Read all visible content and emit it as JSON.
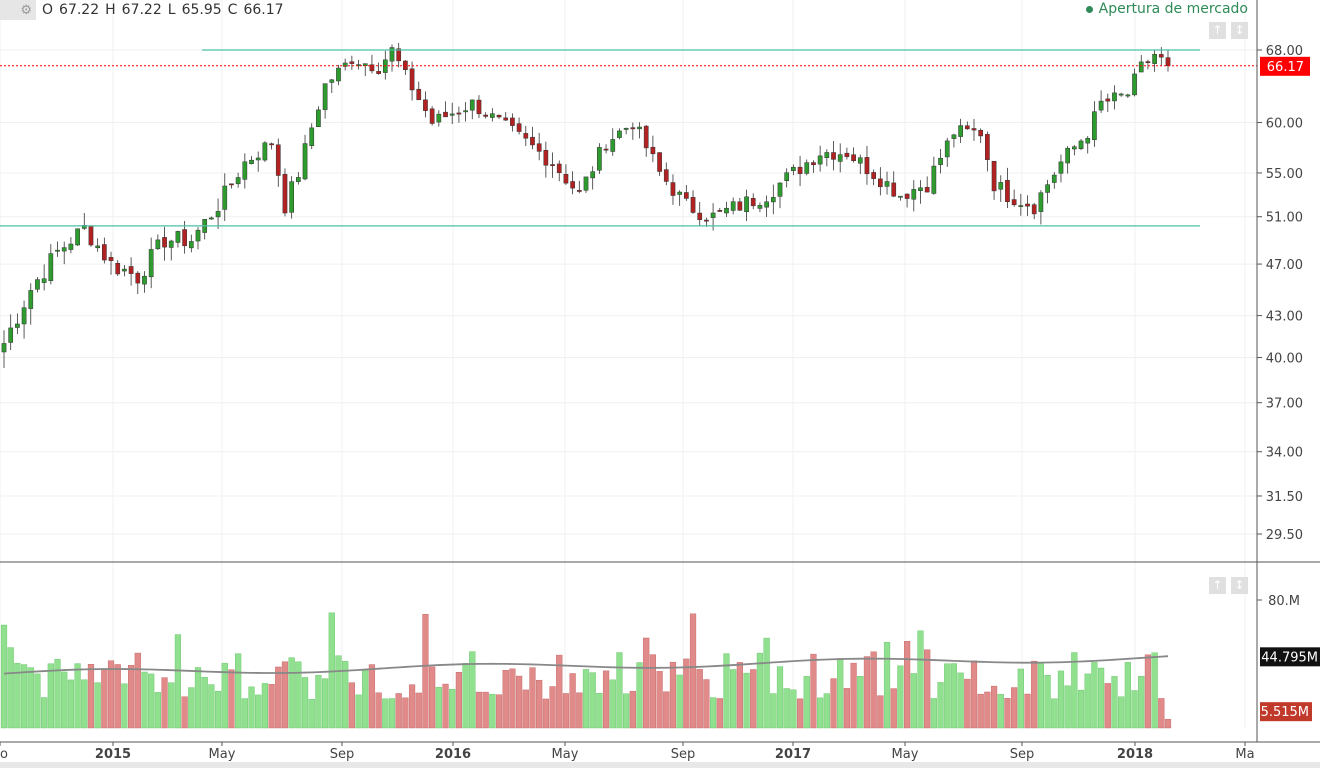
{
  "ohlc": {
    "o_label": "O",
    "o": "67.22",
    "h_label": "H",
    "h": "67.22",
    "l_label": "L",
    "l": "65.95",
    "c_label": "C",
    "c": "66.17"
  },
  "market_status": "Apertura de mercado",
  "colors": {
    "up": "#2e9b2e",
    "down": "#b22222",
    "vol_up": "#90e090",
    "vol_down": "#e08a8a",
    "support": "#4cbfa8",
    "last_price": "#ff0000",
    "ma": "#888888"
  },
  "price_axis": {
    "ticks": [
      "68.00",
      "60.00",
      "55.00",
      "51.00",
      "47.00",
      "43.00",
      "40.00",
      "37.00",
      "34.00",
      "31.50",
      "29.50"
    ],
    "last_price_label": "66.17"
  },
  "volume_axis": {
    "ticks": [
      "80.M"
    ],
    "ma_label": "44.795M",
    "last_volume_label": "5.515M"
  },
  "time_axis": [
    "o",
    "2015",
    "May",
    "Sep",
    "2016",
    "May",
    "Sep",
    "2017",
    "May",
    "Sep",
    "2018",
    "Ma"
  ],
  "chart_data": {
    "type": "candlestick",
    "log_scale": true,
    "price_range": [
      28,
      70
    ],
    "support_level": 50.2,
    "resistance_level": 68.0,
    "last_price": 66.17,
    "volume_range": [
      0,
      100
    ],
    "volume_unit": "M",
    "volume_moving_average": 44.795,
    "last_volume": 5.515,
    "waypoints": [
      [
        0,
        41
      ],
      [
        4,
        45
      ],
      [
        8,
        48
      ],
      [
        12,
        50
      ],
      [
        16,
        47
      ],
      [
        20,
        46
      ],
      [
        24,
        49
      ],
      [
        28,
        49
      ],
      [
        32,
        52
      ],
      [
        36,
        56
      ],
      [
        40,
        58
      ],
      [
        42,
        52
      ],
      [
        44,
        55
      ],
      [
        48,
        64
      ],
      [
        52,
        67
      ],
      [
        56,
        66
      ],
      [
        58,
        68
      ],
      [
        60,
        65
      ],
      [
        64,
        60
      ],
      [
        70,
        62
      ],
      [
        76,
        59
      ],
      [
        82,
        56
      ],
      [
        86,
        53
      ],
      [
        90,
        58
      ],
      [
        94,
        60
      ],
      [
        98,
        55
      ],
      [
        102,
        52
      ],
      [
        106,
        51
      ],
      [
        110,
        52
      ],
      [
        114,
        53
      ],
      [
        118,
        55
      ],
      [
        122,
        57
      ],
      [
        126,
        57
      ],
      [
        130,
        55
      ],
      [
        134,
        53
      ],
      [
        138,
        54
      ],
      [
        142,
        59
      ],
      [
        146,
        59
      ],
      [
        148,
        54
      ],
      [
        150,
        53
      ],
      [
        154,
        52
      ],
      [
        156,
        54
      ],
      [
        158,
        56
      ],
      [
        162,
        59
      ],
      [
        164,
        62
      ],
      [
        168,
        63
      ],
      [
        170,
        66
      ],
      [
        172,
        67.5
      ],
      [
        174,
        66.17
      ]
    ]
  }
}
